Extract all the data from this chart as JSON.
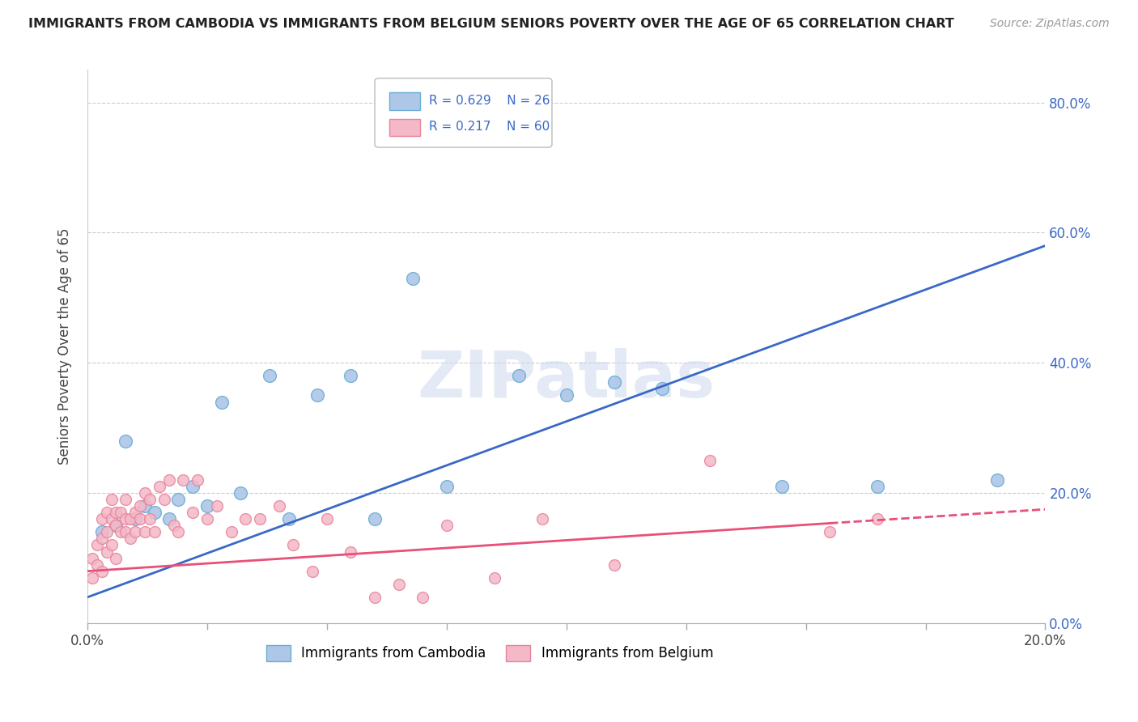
{
  "title": "IMMIGRANTS FROM CAMBODIA VS IMMIGRANTS FROM BELGIUM SENIORS POVERTY OVER THE AGE OF 65 CORRELATION CHART",
  "source": "Source: ZipAtlas.com",
  "ylabel": "Seniors Poverty Over the Age of 65",
  "xlim": [
    0,
    0.2
  ],
  "ylim": [
    0,
    0.85
  ],
  "xticks": [
    0.0,
    0.025,
    0.05,
    0.075,
    0.1,
    0.125,
    0.15,
    0.175,
    0.2
  ],
  "yticks": [
    0.0,
    0.2,
    0.4,
    0.6,
    0.8
  ],
  "cambodia_color": "#aec6e8",
  "cambodia_edge": "#6aaed6",
  "belgium_color": "#f4b8c8",
  "belgium_edge": "#e8849a",
  "trendline_cambodia_color": "#3a68c8",
  "trendline_belgium_color": "#e8507a",
  "R_cambodia": 0.629,
  "N_cambodia": 26,
  "R_belgium": 0.217,
  "N_belgium": 60,
  "legend_label_cambodia": "Immigrants from Cambodia",
  "legend_label_belgium": "Immigrants from Belgium",
  "watermark": "ZIPatlas",
  "cambodia_x": [
    0.003,
    0.006,
    0.008,
    0.01,
    0.012,
    0.014,
    0.017,
    0.019,
    0.022,
    0.025,
    0.028,
    0.032,
    0.038,
    0.042,
    0.048,
    0.055,
    0.06,
    0.068,
    0.075,
    0.09,
    0.1,
    0.11,
    0.12,
    0.145,
    0.165,
    0.19
  ],
  "cambodia_y": [
    0.14,
    0.15,
    0.28,
    0.16,
    0.18,
    0.17,
    0.16,
    0.19,
    0.21,
    0.18,
    0.34,
    0.2,
    0.38,
    0.16,
    0.35,
    0.38,
    0.16,
    0.53,
    0.21,
    0.38,
    0.35,
    0.37,
    0.36,
    0.21,
    0.21,
    0.22
  ],
  "belgium_x": [
    0.001,
    0.001,
    0.002,
    0.002,
    0.003,
    0.003,
    0.003,
    0.004,
    0.004,
    0.004,
    0.005,
    0.005,
    0.005,
    0.006,
    0.006,
    0.006,
    0.007,
    0.007,
    0.008,
    0.008,
    0.008,
    0.009,
    0.009,
    0.01,
    0.01,
    0.011,
    0.011,
    0.012,
    0.012,
    0.013,
    0.013,
    0.014,
    0.015,
    0.016,
    0.017,
    0.018,
    0.019,
    0.02,
    0.022,
    0.023,
    0.025,
    0.027,
    0.03,
    0.033,
    0.036,
    0.04,
    0.043,
    0.047,
    0.05,
    0.055,
    0.06,
    0.065,
    0.07,
    0.075,
    0.085,
    0.095,
    0.11,
    0.13,
    0.155,
    0.165
  ],
  "belgium_y": [
    0.1,
    0.07,
    0.12,
    0.09,
    0.08,
    0.13,
    0.16,
    0.11,
    0.14,
    0.17,
    0.12,
    0.16,
    0.19,
    0.15,
    0.1,
    0.17,
    0.14,
    0.17,
    0.16,
    0.14,
    0.19,
    0.16,
    0.13,
    0.17,
    0.14,
    0.16,
    0.18,
    0.2,
    0.14,
    0.16,
    0.19,
    0.14,
    0.21,
    0.19,
    0.22,
    0.15,
    0.14,
    0.22,
    0.17,
    0.22,
    0.16,
    0.18,
    0.14,
    0.16,
    0.16,
    0.18,
    0.12,
    0.08,
    0.16,
    0.11,
    0.04,
    0.06,
    0.04,
    0.15,
    0.07,
    0.16,
    0.09,
    0.25,
    0.14,
    0.16
  ],
  "trendline_x_solid_end": 0.155,
  "trendline_cam_y0": 0.04,
  "trendline_cam_y1": 0.58,
  "trendline_bel_y0": 0.08,
  "trendline_bel_y1": 0.175
}
